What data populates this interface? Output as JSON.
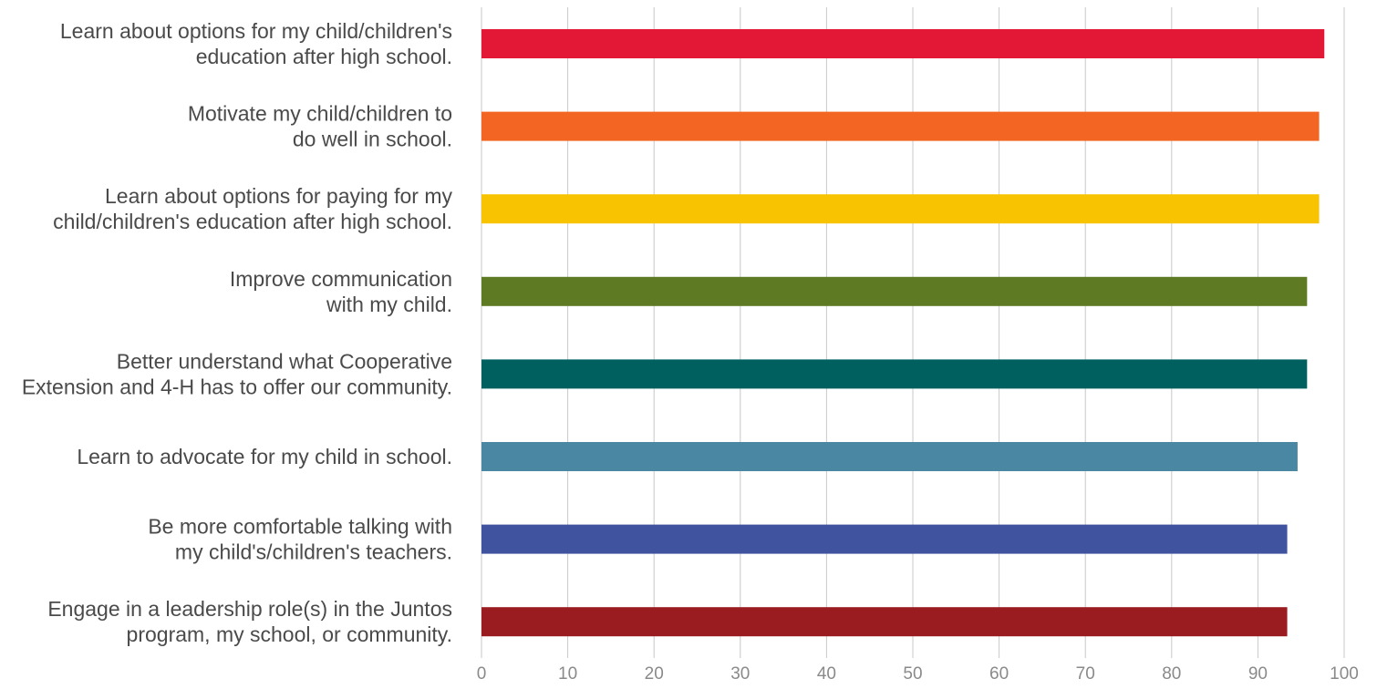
{
  "chart_data": {
    "type": "bar",
    "orientation": "horizontal",
    "title": "",
    "xlabel": "",
    "ylabel": "",
    "xlim": [
      0,
      100
    ],
    "ticks": [
      0,
      10,
      20,
      30,
      40,
      50,
      60,
      70,
      80,
      90,
      100
    ],
    "tick_labels": [
      "0",
      "10",
      "20",
      "30",
      "40",
      "50",
      "60",
      "70",
      "80",
      "90",
      "100"
    ],
    "grid": "vertical",
    "legend": "none",
    "categories": [
      {
        "lines": [
          "Learn about options for my child/children's",
          "education after high school."
        ],
        "value": 97.7,
        "color": "#e31837"
      },
      {
        "lines": [
          "Motivate my child/children to",
          "do well in school."
        ],
        "value": 97.1,
        "color": "#f26522"
      },
      {
        "lines": [
          "Learn about options for paying for my",
          "child/children's education after high school."
        ],
        "value": 97.1,
        "color": "#f8c300"
      },
      {
        "lines": [
          "Improve communication",
          "with my child."
        ],
        "value": 95.7,
        "color": "#5e7a22"
      },
      {
        "lines": [
          "Better understand what Cooperative",
          "Extension and 4-H has to offer our community."
        ],
        "value": 95.7,
        "color": "#006060"
      },
      {
        "lines": [
          "Learn to advocate for my child in school."
        ],
        "value": 94.6,
        "color": "#4a87a3"
      },
      {
        "lines": [
          "Be more comfortable talking with",
          "my child's/children's teachers."
        ],
        "value": 93.4,
        "color": "#40539e"
      },
      {
        "lines": [
          "Engage in a leadership role(s) in the Juntos",
          "program, my school, or community."
        ],
        "value": 93.4,
        "color": "#9a1c20"
      }
    ]
  }
}
